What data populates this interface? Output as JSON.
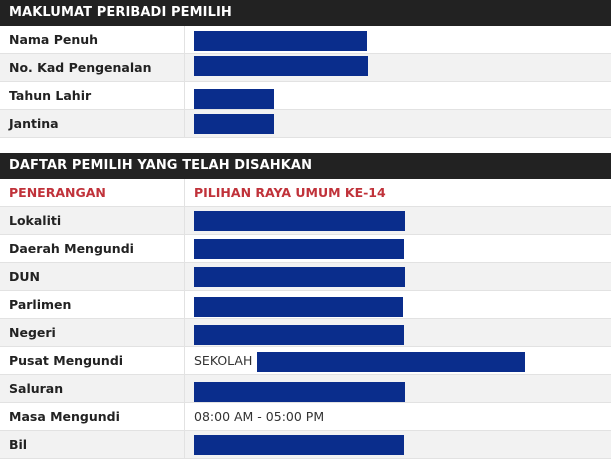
{
  "colors": {
    "header_bg": "#222222",
    "header_text": "#ffffff",
    "accent_red": "#c0323a",
    "redaction": "#0a2d8c",
    "row_alt": "#f2f2f2"
  },
  "section1": {
    "title": "MAKLUMAT PERIBADI PEMILIH",
    "rows": [
      {
        "label": "Nama Penuh",
        "value": ""
      },
      {
        "label": "No. Kad Pengenalan",
        "value": ""
      },
      {
        "label": "Tahun Lahir",
        "value": ""
      },
      {
        "label": "Jantina",
        "value": ""
      }
    ]
  },
  "section2": {
    "title": "DAFTAR PEMILIH YANG TELAH DISAHKAN",
    "column_header": {
      "label": "PENERANGAN",
      "value": "PILIHAN RAYA UMUM KE-14"
    },
    "rows": [
      {
        "label": "Lokaliti",
        "value": ""
      },
      {
        "label": "Daerah Mengundi",
        "value": ""
      },
      {
        "label": "DUN",
        "value": ""
      },
      {
        "label": "Parlimen",
        "value": ""
      },
      {
        "label": "Negeri",
        "value": ""
      },
      {
        "label": "Pusat Mengundi",
        "value": "SEKOLAH"
      },
      {
        "label": "Saluran",
        "value": ""
      },
      {
        "label": "Masa Mengundi",
        "value": "08:00 AM - 05:00 PM"
      },
      {
        "label": "Bil",
        "value": ""
      }
    ]
  }
}
